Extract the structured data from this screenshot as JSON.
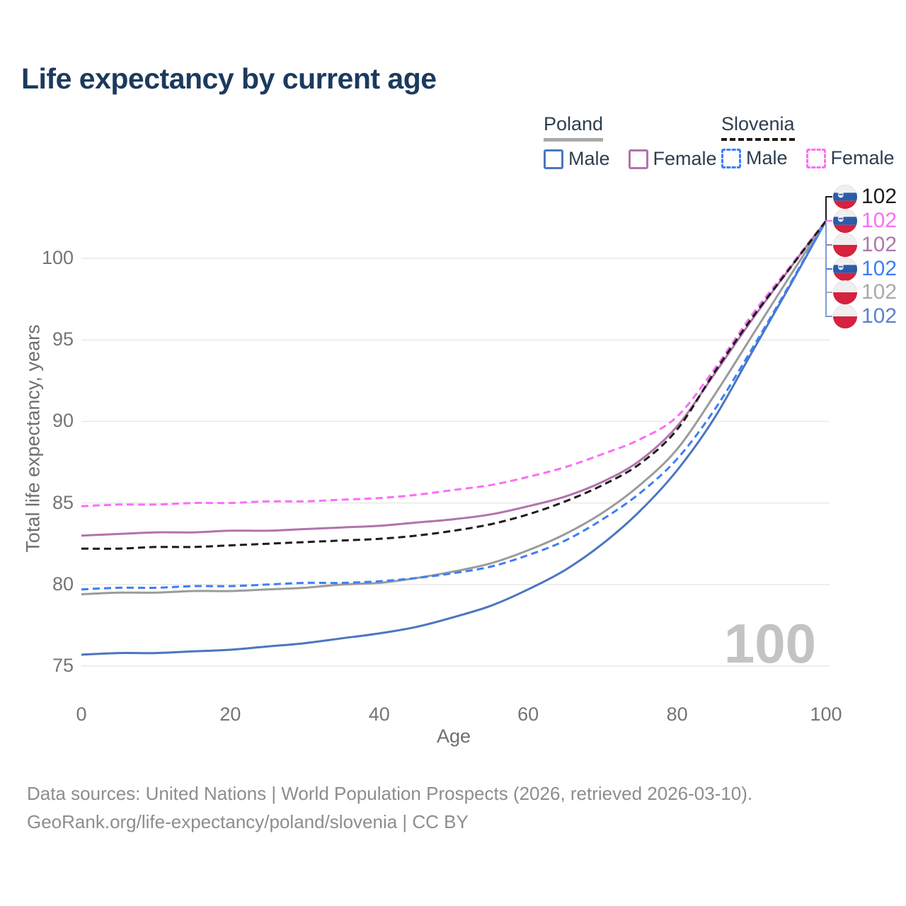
{
  "title": "Life expectancy by current age",
  "legend": {
    "groups": [
      {
        "country": "Poland",
        "line_style": "solid",
        "underline_color": "#a9a9a9",
        "items": [
          {
            "label": "Male",
            "series_key": "poland-male"
          },
          {
            "label": "Female",
            "series_key": "poland-female"
          }
        ]
      },
      {
        "country": "Slovenia",
        "line_style": "dashed",
        "underline_color": "#1c1c1c",
        "items": [
          {
            "label": "Male",
            "series_key": "slovenia-male"
          },
          {
            "label": "Female",
            "series_key": "slovenia-female"
          }
        ]
      }
    ]
  },
  "chart_data": {
    "type": "line",
    "title": "Life expectancy by current age",
    "xlabel": "Age",
    "ylabel": "Total life expectancy, years",
    "xlim": [
      0,
      100
    ],
    "ylim": [
      73.5,
      103.5
    ],
    "x_ticks": [
      0,
      20,
      40,
      60,
      80,
      100
    ],
    "y_ticks": [
      75,
      80,
      85,
      90,
      95,
      100
    ],
    "grid": true,
    "x": [
      0,
      5,
      10,
      15,
      20,
      25,
      30,
      35,
      40,
      45,
      50,
      55,
      60,
      65,
      70,
      75,
      80,
      85,
      90,
      95,
      100
    ],
    "series": [
      {
        "name": "Poland — Male",
        "key": "poland-male",
        "country": "Poland",
        "sex": "Male",
        "line_style": "solid",
        "color": "#4b76c0",
        "values": [
          75.7,
          75.8,
          75.8,
          75.9,
          76.0,
          76.2,
          76.4,
          76.7,
          77.0,
          77.4,
          78.0,
          78.7,
          79.7,
          80.9,
          82.5,
          84.5,
          87.0,
          90.2,
          94.2,
          98.2,
          102.3
        ]
      },
      {
        "name": "Poland — Female",
        "key": "poland-female",
        "country": "Poland",
        "sex": "Female",
        "line_style": "solid",
        "color": "#b273ab",
        "values": [
          83.0,
          83.1,
          83.2,
          83.2,
          83.3,
          83.3,
          83.4,
          83.5,
          83.6,
          83.8,
          84.0,
          84.3,
          84.8,
          85.4,
          86.3,
          87.6,
          89.7,
          92.9,
          96.2,
          99.3,
          102.3
        ]
      },
      {
        "name": "Poland — Total",
        "key": "poland-total",
        "country": "Poland",
        "sex": "Total",
        "line_style": "solid",
        "color": "#9b9b9b",
        "values": [
          79.4,
          79.5,
          79.5,
          79.6,
          79.6,
          79.7,
          79.8,
          80.0,
          80.1,
          80.4,
          80.8,
          81.3,
          82.1,
          83.1,
          84.4,
          86.1,
          88.3,
          91.6,
          95.2,
          98.8,
          102.3
        ]
      },
      {
        "name": "Slovenia — Male",
        "key": "slovenia-male",
        "country": "Slovenia",
        "sex": "Male",
        "line_style": "dashed",
        "color": "#3d7ef8",
        "values": [
          79.7,
          79.8,
          79.8,
          79.9,
          79.9,
          80.0,
          80.1,
          80.1,
          80.2,
          80.4,
          80.7,
          81.1,
          81.8,
          82.7,
          84.0,
          85.6,
          87.7,
          90.7,
          94.4,
          98.3,
          102.3
        ]
      },
      {
        "name": "Slovenia — Female",
        "key": "slovenia-female",
        "country": "Slovenia",
        "sex": "Female",
        "line_style": "dashed",
        "color": "#fb6ef5",
        "values": [
          84.8,
          84.9,
          84.9,
          85.0,
          85.0,
          85.1,
          85.1,
          85.2,
          85.3,
          85.5,
          85.8,
          86.1,
          86.6,
          87.2,
          88.0,
          88.9,
          90.3,
          93.2,
          96.5,
          99.4,
          102.3
        ]
      },
      {
        "name": "Slovenia — Total",
        "key": "slovenia-total",
        "country": "Slovenia",
        "sex": "Total",
        "line_style": "dashed",
        "color": "#1c1c1c",
        "values": [
          82.2,
          82.2,
          82.3,
          82.3,
          82.4,
          82.5,
          82.6,
          82.7,
          82.8,
          83.0,
          83.3,
          83.7,
          84.3,
          85.1,
          86.1,
          87.4,
          89.5,
          93.0,
          96.3,
          99.3,
          102.3
        ]
      }
    ],
    "end_labels": [
      {
        "flag": "slovenia",
        "series": "Slovenia — Total",
        "value": "102",
        "color": "#1c1c1c"
      },
      {
        "flag": "slovenia",
        "series": "Slovenia — Female",
        "value": "102",
        "color": "#fb6ef5"
      },
      {
        "flag": "poland",
        "series": "Poland — Female",
        "value": "102",
        "color": "#ad79a9"
      },
      {
        "flag": "slovenia",
        "series": "Slovenia — Male",
        "value": "102",
        "color": "#3d7ef8"
      },
      {
        "flag": "poland",
        "series": "Poland — Total",
        "value": "102",
        "color": "#a9a9a9"
      },
      {
        "flag": "poland",
        "series": "Poland — Male",
        "value": "102",
        "color": "#5b82c8"
      }
    ],
    "legend_position": "top-right"
  },
  "watermark": {
    "text": "100"
  },
  "footer": {
    "line1": "Data sources: United Nations | World Population Prospects (2026, retrieved 2026-03-10).",
    "line2": "GeoRank.org/life-expectancy/poland/slovenia | CC BY"
  },
  "colors": {
    "title": "#1c3a5e",
    "axis_text": "#757575",
    "gridline": "#e9e9e9",
    "footer_text": "#8d8d8d",
    "watermark": "#c3c3c3",
    "bracket_blue": "#7e9bd8",
    "flag_poland_red": "#d6213f",
    "flag_slovenia_blue": "#2b5cab"
  }
}
